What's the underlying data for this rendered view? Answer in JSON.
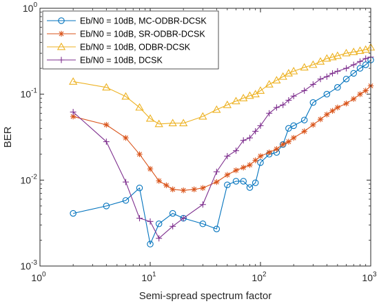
{
  "chart_data": {
    "type": "line",
    "xscale": "log",
    "yscale": "log",
    "xlim": [
      1,
      1000
    ],
    "ylim": [
      0.001,
      1
    ],
    "xlabel": "Semi-spread spectrum factor",
    "ylabel": "BER",
    "x_ticks": [
      {
        "value": 1,
        "base": "10",
        "exp": "0"
      },
      {
        "value": 10,
        "base": "10",
        "exp": "1"
      },
      {
        "value": 100,
        "base": "10",
        "exp": "2"
      },
      {
        "value": 1000,
        "base": "10",
        "exp": "3"
      }
    ],
    "y_ticks": [
      {
        "value": 0.001,
        "base": "10",
        "exp": "-3"
      },
      {
        "value": 0.01,
        "base": "10",
        "exp": "-2"
      },
      {
        "value": 0.1,
        "base": "10",
        "exp": "-1"
      },
      {
        "value": 1,
        "base": "10",
        "exp": "0"
      }
    ],
    "grid": false,
    "legend_position": "top-left",
    "series": [
      {
        "name": "Eb/N0 = 10dB, MC-ODBR-DCSK",
        "color": "#0072BD",
        "marker": "circle",
        "points": [
          [
            2,
            0.0041
          ],
          [
            4,
            0.005
          ],
          [
            6,
            0.0058
          ],
          [
            8,
            0.0081
          ],
          [
            10,
            0.0018
          ],
          [
            12,
            0.0031
          ],
          [
            16,
            0.0041
          ],
          [
            20,
            0.0036
          ],
          [
            30,
            0.0031
          ],
          [
            40,
            0.0027
          ],
          [
            50,
            0.0088
          ],
          [
            60,
            0.0097
          ],
          [
            70,
            0.0097
          ],
          [
            80,
            0.0082
          ],
          [
            90,
            0.0093
          ],
          [
            100,
            0.016
          ],
          [
            120,
            0.02
          ],
          [
            140,
            0.021
          ],
          [
            160,
            0.026
          ],
          [
            180,
            0.04
          ],
          [
            200,
            0.043
          ],
          [
            250,
            0.05
          ],
          [
            300,
            0.08
          ],
          [
            400,
            0.1
          ],
          [
            500,
            0.12
          ],
          [
            600,
            0.15
          ],
          [
            700,
            0.175
          ],
          [
            800,
            0.2
          ],
          [
            900,
            0.22
          ],
          [
            1000,
            0.25
          ]
        ]
      },
      {
        "name": "Eb/N0 = 10dB, SR-ODBR-DCSK",
        "color": "#D95319",
        "marker": "asterisk",
        "points": [
          [
            2,
            0.055
          ],
          [
            4,
            0.044
          ],
          [
            6,
            0.031
          ],
          [
            8,
            0.02
          ],
          [
            10,
            0.0135
          ],
          [
            12,
            0.0098
          ],
          [
            14,
            0.0087
          ],
          [
            16,
            0.0078
          ],
          [
            20,
            0.0076
          ],
          [
            25,
            0.0078
          ],
          [
            30,
            0.0081
          ],
          [
            40,
            0.0095
          ],
          [
            50,
            0.0115
          ],
          [
            60,
            0.013
          ],
          [
            70,
            0.014
          ],
          [
            80,
            0.015
          ],
          [
            90,
            0.017
          ],
          [
            100,
            0.019
          ],
          [
            120,
            0.021
          ],
          [
            140,
            0.023
          ],
          [
            160,
            0.026
          ],
          [
            180,
            0.028
          ],
          [
            200,
            0.031
          ],
          [
            250,
            0.037
          ],
          [
            300,
            0.044
          ],
          [
            350,
            0.051
          ],
          [
            400,
            0.058
          ],
          [
            450,
            0.064
          ],
          [
            500,
            0.07
          ],
          [
            600,
            0.078
          ],
          [
            700,
            0.088
          ],
          [
            800,
            0.1
          ],
          [
            900,
            0.11
          ],
          [
            1000,
            0.125
          ]
        ]
      },
      {
        "name": "Eb/N0 = 10dB, ODBR-DCSK",
        "color": "#EDB120",
        "marker": "triangle",
        "points": [
          [
            2,
            0.14
          ],
          [
            4,
            0.12
          ],
          [
            6,
            0.094
          ],
          [
            8,
            0.07
          ],
          [
            10,
            0.052
          ],
          [
            12,
            0.045
          ],
          [
            16,
            0.046
          ],
          [
            20,
            0.046
          ],
          [
            30,
            0.055
          ],
          [
            40,
            0.066
          ],
          [
            50,
            0.075
          ],
          [
            60,
            0.083
          ],
          [
            70,
            0.09
          ],
          [
            80,
            0.096
          ],
          [
            90,
            0.1
          ],
          [
            100,
            0.11
          ],
          [
            120,
            0.13
          ],
          [
            140,
            0.145
          ],
          [
            160,
            0.16
          ],
          [
            180,
            0.175
          ],
          [
            200,
            0.185
          ],
          [
            250,
            0.205
          ],
          [
            300,
            0.22
          ],
          [
            350,
            0.24
          ],
          [
            400,
            0.26
          ],
          [
            450,
            0.27
          ],
          [
            500,
            0.28
          ],
          [
            600,
            0.3
          ],
          [
            700,
            0.31
          ],
          [
            800,
            0.32
          ],
          [
            900,
            0.33
          ],
          [
            1000,
            0.35
          ]
        ]
      },
      {
        "name": "Eb/N0 = 10dB, DCSK",
        "color": "#7E2F8E",
        "marker": "plus",
        "points": [
          [
            2,
            0.062
          ],
          [
            4,
            0.028
          ],
          [
            6,
            0.0095
          ],
          [
            8,
            0.0036
          ],
          [
            10,
            0.0033
          ],
          [
            12,
            0.0021
          ],
          [
            16,
            0.0029
          ],
          [
            20,
            0.0036
          ],
          [
            30,
            0.0052
          ],
          [
            40,
            0.0125
          ],
          [
            50,
            0.019
          ],
          [
            60,
            0.022
          ],
          [
            70,
            0.029
          ],
          [
            80,
            0.031
          ],
          [
            90,
            0.037
          ],
          [
            100,
            0.043
          ],
          [
            120,
            0.06
          ],
          [
            140,
            0.07
          ],
          [
            160,
            0.075
          ],
          [
            180,
            0.085
          ],
          [
            200,
            0.095
          ],
          [
            250,
            0.11
          ],
          [
            300,
            0.13
          ],
          [
            350,
            0.15
          ],
          [
            400,
            0.16
          ],
          [
            450,
            0.175
          ],
          [
            500,
            0.185
          ],
          [
            600,
            0.2
          ],
          [
            700,
            0.22
          ],
          [
            800,
            0.24
          ],
          [
            900,
            0.26
          ],
          [
            1000,
            0.27
          ]
        ]
      }
    ]
  }
}
